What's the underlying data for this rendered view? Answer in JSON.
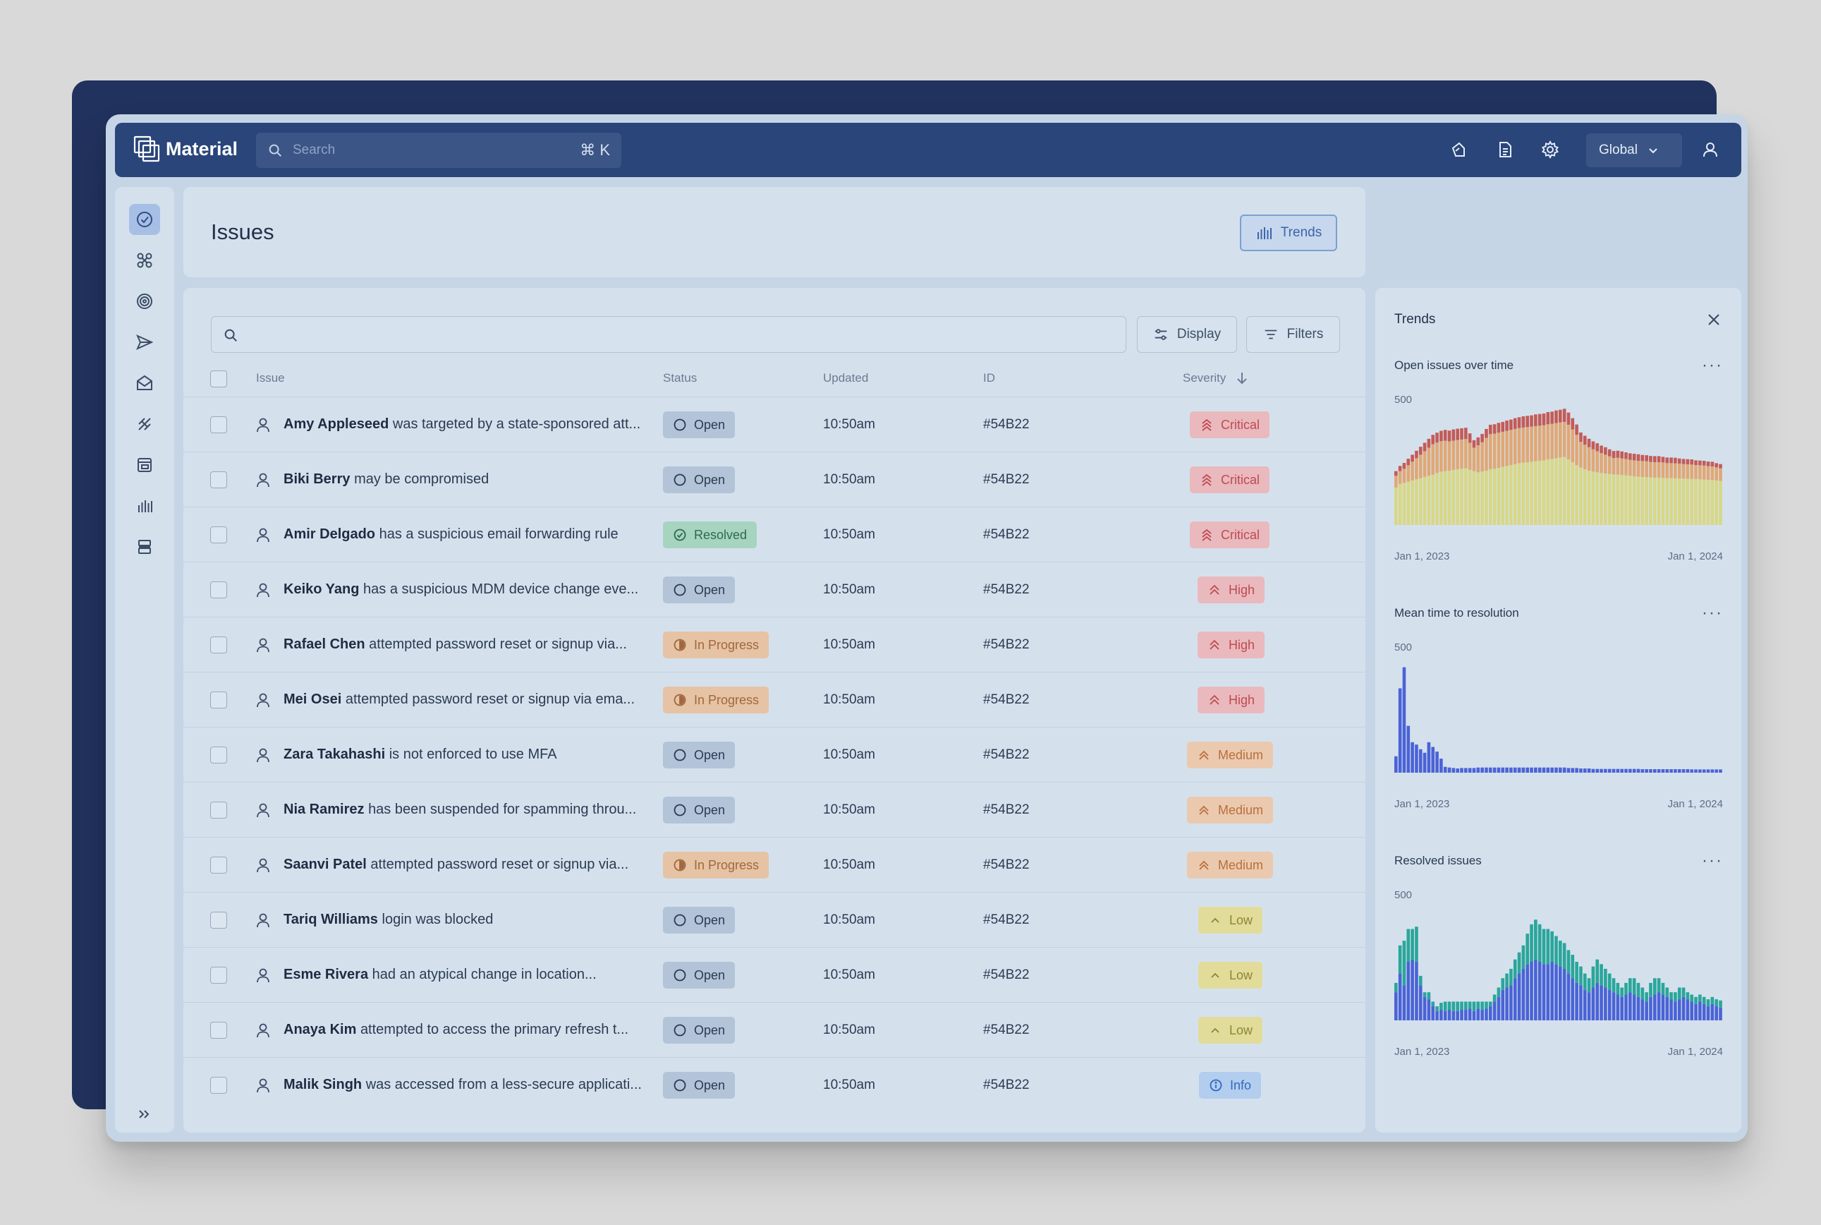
{
  "app": {
    "brand": "Material",
    "search_placeholder": "Search",
    "search_shortcut": "⌘ K",
    "scope_selector": "Global"
  },
  "header": {
    "title": "Issues",
    "trends_button": "Trends"
  },
  "toolbar": {
    "display_button": "Display",
    "filters_button": "Filters"
  },
  "table": {
    "columns": [
      "Issue",
      "Status",
      "Updated",
      "ID",
      "Severity"
    ],
    "rows": [
      {
        "name": "Amy Appleseed",
        "text": "was targeted by a state-sponsored att...",
        "status": "Open",
        "updated": "10:50am",
        "id": "#54B22",
        "severity": "Critical"
      },
      {
        "name": "Biki Berry",
        "text": "may be compromised",
        "status": "Open",
        "updated": "10:50am",
        "id": "#54B22",
        "severity": "Critical"
      },
      {
        "name": "Amir Delgado",
        "text": "has a suspicious email forwarding rule",
        "status": "Resolved",
        "updated": "10:50am",
        "id": "#54B22",
        "severity": "Critical"
      },
      {
        "name": "Keiko Yang",
        "text": "has a suspicious MDM device change eve...",
        "status": "Open",
        "updated": "10:50am",
        "id": "#54B22",
        "severity": "High"
      },
      {
        "name": "Rafael Chen",
        "text": "attempted password reset or signup via...",
        "status": "In Progress",
        "updated": "10:50am",
        "id": "#54B22",
        "severity": "High"
      },
      {
        "name": "Mei Osei",
        "text": "attempted password reset or signup via ema...",
        "status": "In Progress",
        "updated": "10:50am",
        "id": "#54B22",
        "severity": "High"
      },
      {
        "name": "Zara Takahashi",
        "text": "is not enforced to use MFA",
        "status": "Open",
        "updated": "10:50am",
        "id": "#54B22",
        "severity": "Medium"
      },
      {
        "name": "Nia Ramirez",
        "text": "has been suspended for spamming throu...",
        "status": "Open",
        "updated": "10:50am",
        "id": "#54B22",
        "severity": "Medium"
      },
      {
        "name": "Saanvi Patel",
        "text": "attempted password reset or signup via...",
        "status": "In Progress",
        "updated": "10:50am",
        "id": "#54B22",
        "severity": "Medium"
      },
      {
        "name": "Tariq Williams",
        "text": "login was blocked",
        "status": "Open",
        "updated": "10:50am",
        "id": "#54B22",
        "severity": "Low"
      },
      {
        "name": "Esme Rivera",
        "text": "had an atypical change in location...",
        "status": "Open",
        "updated": "10:50am",
        "id": "#54B22",
        "severity": "Low"
      },
      {
        "name": "Anaya Kim",
        "text": " attempted to access the primary refresh t...",
        "status": "Open",
        "updated": "10:50am",
        "id": "#54B22",
        "severity": "Low"
      },
      {
        "name": "Malik Singh",
        "text": "was accessed from a less-secure applicati...",
        "status": "Open",
        "updated": "10:50am",
        "id": "#54B22",
        "severity": "Info"
      }
    ]
  },
  "trends_panel": {
    "title": "Trends",
    "charts": [
      {
        "title": "Open issues over time",
        "y_tick": "500",
        "x_start": "Jan 1, 2023",
        "x_end": "Jan 1, 2024"
      },
      {
        "title": "Mean time to resolution",
        "y_tick": "500",
        "x_start": "Jan 1, 2023",
        "x_end": "Jan 1, 2024"
      },
      {
        "title": "Resolved issues",
        "y_tick": "500",
        "x_start": "Jan 1, 2023",
        "x_end": "Jan 1, 2024"
      }
    ]
  },
  "colors": {
    "topbar": "#29457a",
    "critical": "#bf4a52",
    "medium": "#b8703e",
    "low": "#8f8532",
    "info": "#3369bf",
    "chart_blue": "#4b63d6",
    "chart_teal": "#2aa69a",
    "chart_red": "#c35b58",
    "chart_orange": "#e0a876",
    "chart_yellow": "#d8d785"
  },
  "chart_data": [
    {
      "type": "bar",
      "title": "Open issues over time",
      "stacked": true,
      "ylim": [
        0,
        500
      ],
      "x_range": [
        "Jan 1, 2023",
        "Jan 1, 2024"
      ],
      "series": [
        {
          "color": "#d8d785",
          "values": [
            160,
            175,
            180,
            185,
            190,
            195,
            200,
            205,
            210,
            215,
            222,
            228,
            230,
            232,
            235,
            238,
            240,
            242,
            236,
            230,
            225,
            228,
            232,
            238,
            240,
            244,
            248,
            252,
            256,
            260,
            264,
            266,
            268,
            270,
            272,
            274,
            276,
            280,
            282,
            285,
            288,
            290,
            280,
            268,
            255,
            245,
            238,
            232,
            228,
            225,
            222,
            220,
            218,
            216,
            215,
            214,
            212,
            210,
            208,
            206,
            205,
            204,
            203,
            202,
            202,
            201,
            200,
            200,
            199,
            198,
            198,
            197,
            196,
            196,
            195,
            194,
            193,
            192,
            190,
            188
          ]
        },
        {
          "color": "#e0a876",
          "values": [
            50,
            55,
            60,
            70,
            80,
            90,
            100,
            110,
            120,
            130,
            130,
            130,
            130,
            125,
            125,
            125,
            125,
            125,
            115,
            100,
            115,
            125,
            140,
            150,
            150,
            150,
            150,
            150,
            150,
            150,
            150,
            150,
            150,
            150,
            150,
            150,
            150,
            150,
            150,
            150,
            150,
            150,
            148,
            140,
            130,
            110,
            105,
            100,
            95,
            90,
            85,
            80,
            75,
            70,
            72,
            70,
            70,
            68,
            68,
            68,
            68,
            68,
            66,
            66,
            66,
            66,
            64,
            64,
            64,
            64,
            62,
            62,
            62,
            60,
            60,
            60,
            58,
            58,
            56,
            54
          ]
        },
        {
          "color": "#c35b58",
          "values": [
            20,
            22,
            25,
            28,
            30,
            32,
            34,
            36,
            38,
            40,
            42,
            44,
            46,
            46,
            48,
            48,
            48,
            48,
            40,
            32,
            34,
            36,
            38,
            40,
            40,
            42,
            42,
            44,
            44,
            46,
            46,
            48,
            48,
            48,
            50,
            50,
            50,
            52,
            52,
            54,
            54,
            56,
            52,
            48,
            44,
            40,
            38,
            36,
            34,
            34,
            32,
            32,
            30,
            30,
            30,
            30,
            28,
            28,
            28,
            28,
            26,
            26,
            26,
            26,
            26,
            24,
            24,
            24,
            24,
            22,
            22,
            22,
            22,
            20,
            20,
            20,
            20,
            20,
            18,
            18
          ]
        }
      ]
    },
    {
      "type": "bar",
      "title": "Mean time to resolution",
      "ylim": [
        0,
        500
      ],
      "x_range": [
        "Jan 1, 2023",
        "Jan 1, 2024"
      ],
      "series": [
        {
          "color": "#4b63d6",
          "values": [
            70,
            360,
            450,
            200,
            130,
            120,
            100,
            85,
            130,
            110,
            90,
            60,
            25,
            22,
            20,
            18,
            20,
            20,
            20,
            20,
            22,
            22,
            22,
            22,
            22,
            22,
            22,
            22,
            22,
            22,
            22,
            22,
            22,
            22,
            22,
            22,
            22,
            22,
            22,
            22,
            22,
            22,
            20,
            20,
            20,
            18,
            18,
            18,
            16,
            16,
            16,
            16,
            16,
            16,
            16,
            16,
            16,
            16,
            16,
            16,
            15,
            15,
            15,
            15,
            15,
            15,
            15,
            15,
            15,
            15,
            15,
            15,
            14,
            14,
            14,
            14,
            14,
            14,
            14,
            14
          ]
        }
      ]
    },
    {
      "type": "bar",
      "title": "Resolved issues",
      "stacked": true,
      "ylim": [
        0,
        500
      ],
      "x_range": [
        "Jan 1, 2023",
        "Jan 1, 2024"
      ],
      "series": [
        {
          "color": "#4b63d6",
          "values": [
            120,
            200,
            150,
            250,
            260,
            250,
            150,
            100,
            90,
            60,
            40,
            45,
            40,
            45,
            40,
            40,
            45,
            45,
            50,
            40,
            50,
            45,
            50,
            60,
            80,
            100,
            130,
            140,
            150,
            180,
            200,
            220,
            240,
            250,
            260,
            250,
            240,
            240,
            250,
            240,
            230,
            220,
            200,
            180,
            160,
            150,
            130,
            120,
            140,
            160,
            150,
            140,
            130,
            120,
            110,
            100,
            110,
            120,
            110,
            100,
            90,
            80,
            100,
            110,
            120,
            110,
            100,
            90,
            80,
            90,
            100,
            90,
            80,
            70,
            80,
            70,
            60,
            70,
            60,
            55
          ]
        },
        {
          "color": "#2aa69a",
          "values": [
            40,
            120,
            190,
            140,
            130,
            150,
            40,
            20,
            30,
            20,
            20,
            30,
            40,
            35,
            40,
            40,
            35,
            35,
            30,
            40,
            30,
            35,
            30,
            20,
            30,
            40,
            50,
            60,
            70,
            80,
            90,
            100,
            130,
            160,
            170,
            160,
            150,
            150,
            130,
            120,
            110,
            110,
            100,
            100,
            90,
            80,
            70,
            60,
            90,
            100,
            90,
            80,
            70,
            60,
            50,
            40,
            50,
            60,
            70,
            60,
            50,
            40,
            60,
            70,
            60,
            50,
            40,
            30,
            40,
            50,
            40,
            30,
            30,
            30,
            30,
            30,
            30,
            30,
            30,
            30
          ]
        }
      ]
    }
  ]
}
